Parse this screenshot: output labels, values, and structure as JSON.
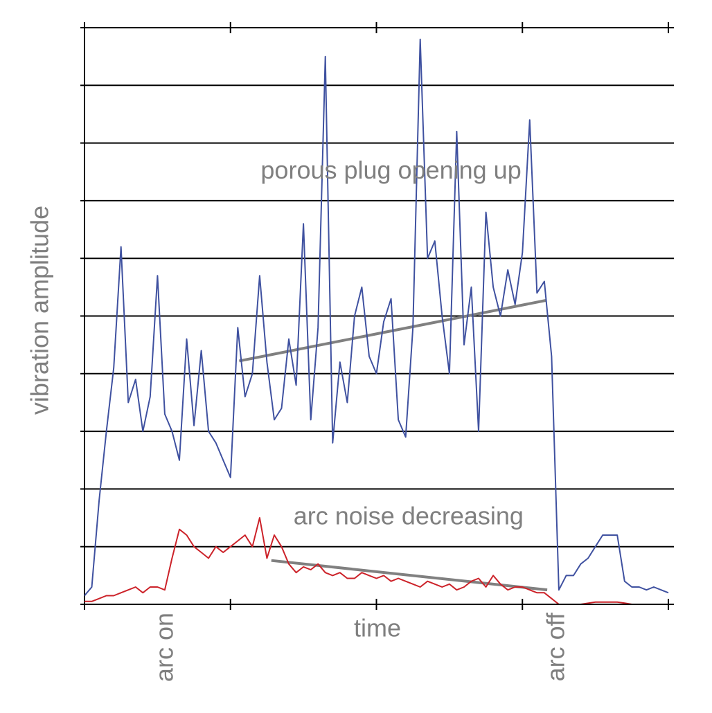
{
  "chart_data": {
    "type": "line",
    "xlabel": "time",
    "ylabel": "vibration amplitude",
    "xlim": [
      0,
      4
    ],
    "ylim": [
      0,
      10
    ],
    "xticks": [
      0,
      1,
      2,
      3,
      4
    ],
    "yticks": [
      0,
      1,
      2,
      3,
      4,
      5,
      6,
      7,
      8,
      9,
      10
    ],
    "grid": true,
    "x": [
      0,
      0.05,
      0.1,
      0.15,
      0.2,
      0.25,
      0.3,
      0.35,
      0.4,
      0.45,
      0.5,
      0.55,
      0.6,
      0.65,
      0.7,
      0.75,
      0.8,
      0.85,
      0.9,
      0.95,
      1,
      1.05,
      1.1,
      1.15,
      1.2,
      1.25,
      1.3,
      1.35,
      1.4,
      1.45,
      1.5,
      1.55,
      1.6,
      1.65,
      1.7,
      1.75,
      1.8,
      1.85,
      1.9,
      1.95,
      2,
      2.05,
      2.1,
      2.15,
      2.2,
      2.25,
      2.3,
      2.35,
      2.4,
      2.45,
      2.5,
      2.55,
      2.6,
      2.65,
      2.7,
      2.75,
      2.8,
      2.85,
      2.9,
      2.95,
      3,
      3.05,
      3.1,
      3.15,
      3.2,
      3.25,
      3.3,
      3.35,
      3.4,
      3.45,
      3.5,
      3.55,
      3.6,
      3.65,
      3.7,
      3.75,
      3.8,
      3.85,
      3.9,
      3.95,
      4
    ],
    "series": [
      {
        "color": "#3f51a0",
        "values": [
          0.15,
          0.3,
          1.8,
          3.0,
          4.1,
          6.2,
          3.5,
          3.9,
          3.0,
          3.6,
          5.7,
          3.3,
          3.0,
          2.5,
          4.6,
          3.1,
          4.4,
          3.0,
          2.8,
          2.5,
          2.2,
          4.8,
          3.6,
          4.0,
          5.7,
          4.2,
          3.2,
          3.4,
          4.6,
          3.8,
          6.6,
          3.2,
          4.8,
          9.5,
          2.8,
          4.2,
          3.5,
          5.0,
          5.5,
          4.3,
          4.0,
          4.9,
          5.3,
          3.2,
          2.9,
          4.8,
          9.8,
          6.0,
          6.3,
          5.0,
          4.0,
          8.2,
          4.5,
          5.5,
          3.0,
          6.8,
          5.5,
          5.0,
          5.8,
          5.2,
          6.1,
          8.4,
          5.4,
          5.6,
          4.3,
          0.25,
          0.5,
          0.5,
          0.7,
          0.8,
          1.0,
          1.2,
          1.2,
          1.2,
          0.4,
          0.3,
          0.3,
          0.25,
          0.3,
          0.25,
          0.2
        ]
      },
      {
        "color": "#cc2229",
        "values": [
          0.05,
          0.05,
          0.1,
          0.15,
          0.15,
          0.2,
          0.25,
          0.3,
          0.2,
          0.3,
          0.3,
          0.25,
          0.8,
          1.3,
          1.2,
          1.0,
          0.9,
          0.8,
          1.0,
          0.9,
          1.0,
          1.1,
          1.2,
          1.0,
          1.5,
          0.8,
          1.2,
          1.0,
          0.7,
          0.55,
          0.65,
          0.6,
          0.7,
          0.55,
          0.5,
          0.55,
          0.45,
          0.45,
          0.55,
          0.5,
          0.45,
          0.5,
          0.4,
          0.45,
          0.4,
          0.35,
          0.3,
          0.4,
          0.35,
          0.3,
          0.35,
          0.25,
          0.3,
          0.4,
          0.45,
          0.3,
          0.5,
          0.35,
          0.25,
          0.3,
          0.3,
          0.25,
          0.2,
          0.2,
          0.1,
          0,
          0,
          0,
          0,
          0.02,
          0.04,
          0.04,
          0.04,
          0.04,
          0.02,
          0,
          0,
          0,
          0,
          0,
          0
        ]
      }
    ],
    "trend_lines": [
      {
        "color": "#808080",
        "x": [
          1.06,
          3.16
        ],
        "y": [
          4.22,
          5.27
        ]
      },
      {
        "color": "#808080",
        "x": [
          1.28,
          3.17
        ],
        "y": [
          0.76,
          0.25
        ]
      }
    ],
    "annotations": [
      {
        "text": "porous plug opening up",
        "x": 2.1,
        "y": 7.5
      },
      {
        "text": "arc noise decreasing",
        "x": 2.22,
        "y": 1.5
      }
    ],
    "x_markers": [
      {
        "text": "arc on",
        "x": 0.56
      },
      {
        "text": "arc off",
        "x": 3.24
      }
    ]
  }
}
